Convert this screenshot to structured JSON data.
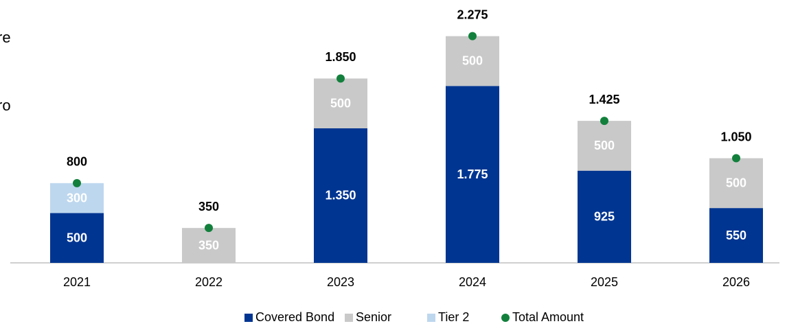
{
  "chart_data": {
    "type": "stacked-bar",
    "annotations": [
      "re",
      "ro"
    ],
    "categories": [
      "2021",
      "2022",
      "2023",
      "2024",
      "2025",
      "2026"
    ],
    "series": [
      {
        "name": "Covered Bond",
        "color": "#003591",
        "values": [
          500,
          null,
          1350,
          1775,
          925,
          550
        ],
        "value_labels": [
          "500",
          null,
          "1.350",
          "1.775",
          "925",
          "550"
        ]
      },
      {
        "name": "Senior",
        "color": "#c9c9c9",
        "values": [
          null,
          350,
          500,
          500,
          500,
          500
        ],
        "value_labels": [
          null,
          "350",
          "500",
          "500",
          "500",
          "500"
        ]
      },
      {
        "name": "Tier 2",
        "color": "#bdd7ee",
        "values": [
          300,
          null,
          null,
          null,
          null,
          null
        ],
        "value_labels": [
          "300",
          null,
          null,
          null,
          null,
          null
        ]
      },
      {
        "name": "Total Amount",
        "color": "#12803c",
        "type": "dot",
        "values": [
          800,
          350,
          1850,
          2275,
          1425,
          1050
        ],
        "value_labels": [
          "800",
          "350",
          "1.850",
          "2.275",
          "1.425",
          "1.050"
        ]
      }
    ],
    "ylim": [
      0,
      2500
    ],
    "legend": "bottom"
  }
}
